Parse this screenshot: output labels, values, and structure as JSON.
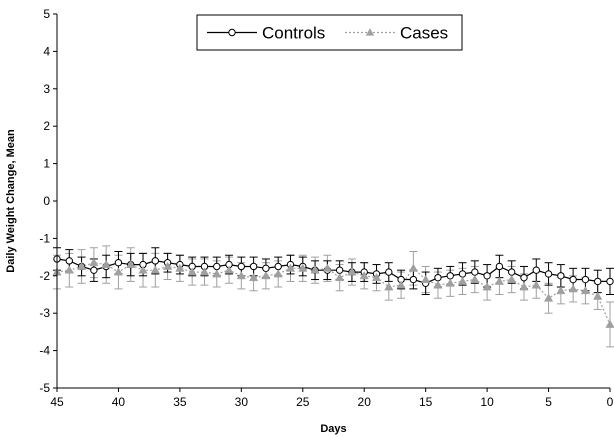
{
  "chart_data": {
    "type": "line",
    "xlabel": "Days",
    "ylabel": "Daily Weight Change, Mean",
    "xlim": [
      45,
      0
    ],
    "ylim": [
      -5,
      5
    ],
    "x_ticks": [
      45,
      40,
      35,
      30,
      25,
      20,
      15,
      10,
      5,
      0
    ],
    "y_ticks": [
      5,
      4,
      3,
      2,
      1,
      0,
      -1,
      -2,
      -3,
      -4,
      -5
    ],
    "grid": false,
    "legend_position": "top-center",
    "x": [
      45,
      44,
      43,
      42,
      41,
      40,
      39,
      38,
      37,
      36,
      35,
      34,
      33,
      32,
      31,
      30,
      29,
      28,
      27,
      26,
      25,
      24,
      23,
      22,
      21,
      20,
      19,
      18,
      17,
      16,
      15,
      14,
      13,
      12,
      11,
      10,
      9,
      8,
      7,
      6,
      5,
      4,
      3,
      2,
      1,
      0
    ],
    "series": [
      {
        "name": "Controls",
        "color": "#000000",
        "marker": "open-circle",
        "line_style": "solid",
        "values": [
          -1.55,
          -1.6,
          -1.75,
          -1.85,
          -1.75,
          -1.65,
          -1.7,
          -1.7,
          -1.6,
          -1.65,
          -1.7,
          -1.75,
          -1.75,
          -1.75,
          -1.7,
          -1.75,
          -1.75,
          -1.8,
          -1.75,
          -1.7,
          -1.75,
          -1.85,
          -1.85,
          -1.85,
          -1.9,
          -1.9,
          -1.95,
          -1.9,
          -2.1,
          -2.1,
          -2.2,
          -2.05,
          -2.0,
          -1.95,
          -1.9,
          -2.0,
          -1.75,
          -1.9,
          -2.05,
          -1.85,
          -1.95,
          -2.0,
          -2.1,
          -2.1,
          -2.15,
          -2.15
        ],
        "errors": [
          0.3,
          0.3,
          0.25,
          0.3,
          0.3,
          0.3,
          0.3,
          0.3,
          0.35,
          0.25,
          0.25,
          0.25,
          0.25,
          0.25,
          0.25,
          0.25,
          0.25,
          0.25,
          0.25,
          0.25,
          0.25,
          0.25,
          0.25,
          0.25,
          0.25,
          0.25,
          0.25,
          0.25,
          0.25,
          0.25,
          0.3,
          0.25,
          0.25,
          0.3,
          0.3,
          0.3,
          0.3,
          0.3,
          0.3,
          0.3,
          0.3,
          0.3,
          0.3,
          0.3,
          0.3,
          0.35
        ]
      },
      {
        "name": "Cases",
        "color": "#a0a0a0",
        "marker": "filled-triangle",
        "line_style": "dotted",
        "values": [
          -1.9,
          -1.85,
          -1.75,
          -1.65,
          -1.7,
          -1.9,
          -1.7,
          -1.85,
          -1.85,
          -1.75,
          -1.8,
          -1.9,
          -1.9,
          -1.95,
          -1.85,
          -2.0,
          -2.05,
          -2.0,
          -1.95,
          -1.8,
          -1.8,
          -1.85,
          -1.8,
          -2.05,
          -1.9,
          -2.0,
          -2.05,
          -2.3,
          -2.25,
          -1.8,
          -2.1,
          -2.25,
          -2.2,
          -2.15,
          -2.1,
          -2.3,
          -2.15,
          -2.1,
          -2.3,
          -2.25,
          -2.6,
          -2.4,
          -2.35,
          -2.4,
          -2.55,
          -3.3
        ],
        "errors": [
          0.45,
          0.45,
          0.45,
          0.4,
          0.5,
          0.45,
          0.45,
          0.45,
          0.45,
          0.35,
          0.35,
          0.35,
          0.35,
          0.35,
          0.35,
          0.35,
          0.35,
          0.35,
          0.35,
          0.35,
          0.35,
          0.35,
          0.35,
          0.35,
          0.35,
          0.35,
          0.35,
          0.35,
          0.35,
          0.45,
          0.35,
          0.35,
          0.35,
          0.35,
          0.35,
          0.35,
          0.35,
          0.35,
          0.35,
          0.35,
          0.4,
          0.35,
          0.35,
          0.35,
          0.35,
          0.6
        ]
      }
    ]
  }
}
